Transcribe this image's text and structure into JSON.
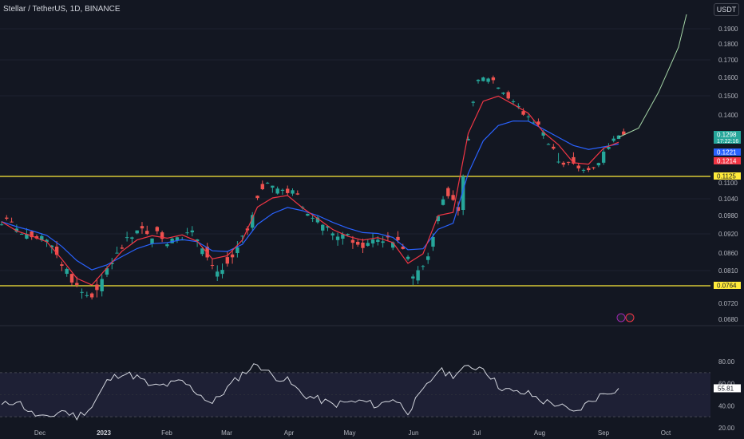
{
  "title": "Stellar / TetherUS, 1D, BINANCE",
  "currency_badge": "USDT",
  "colors": {
    "background": "#131722",
    "up": "#26a69a",
    "down": "#ef5350",
    "ema_fast": "#f23645",
    "ema_slow": "#2962ff",
    "level_line": "#ffeb3b",
    "projection": "#a5d6a7",
    "rsi": "#d1d4dc",
    "rsi_band": "#1e2035"
  },
  "chart_data": [
    {
      "type": "line",
      "title": "Stellar / TetherUS, 1D, BINANCE",
      "x_ticks": [
        "Dec",
        "2023",
        "Feb",
        "Mar",
        "Apr",
        "May",
        "Jun",
        "Jul",
        "Aug",
        "Sep",
        "Oct"
      ],
      "y_ticks": [
        "0.1900",
        "0.1800",
        "0.1700",
        "0.1600",
        "0.1500",
        "0.1400",
        "0.1100",
        "0.1040",
        "0.0980",
        "0.0920",
        "0.0860",
        "0.0810",
        "0.0720",
        "0.0680"
      ],
      "price_labels": [
        {
          "value": "0.1298",
          "sub": "17:22:16",
          "color": "#26a69a"
        },
        {
          "value": "0.1221",
          "color": "#2962ff"
        },
        {
          "value": "0.1214",
          "color": "#f23645"
        },
        {
          "value": "0.1125",
          "color": "#ffeb3b"
        },
        {
          "value": "0.0764",
          "color": "#ffeb3b"
        }
      ],
      "horizontal_levels": [
        0.1125,
        0.0764
      ],
      "series": [
        {
          "x": [
            "Nov 20",
            "Nov 27",
            "Dec 4",
            "Dec 11",
            "Dec 18",
            "Dec 25",
            "Jan 1",
            "Jan 8",
            "Jan 15",
            "Jan 22",
            "Jan 29",
            "Feb 5",
            "Feb 12",
            "Feb 19",
            "Feb 26",
            "Mar 5",
            "Mar 12",
            "Mar 19",
            "Mar 26",
            "Apr 2",
            "Apr 9",
            "Apr 16",
            "Apr 23",
            "Apr 30",
            "May 7",
            "May 14",
            "May 21",
            "May 28",
            "Jun 4",
            "Jun 11",
            "Jun 18",
            "Jun 25",
            "Jul 2",
            "Jul 9",
            "Jul 16",
            "Jul 23",
            "Jul 30",
            "Aug 6",
            "Aug 13",
            "Aug 20",
            "Aug 27",
            "Sep 3"
          ],
          "y": [
            0.096,
            0.0905,
            0.09,
            0.088,
            0.08,
            0.074,
            0.075,
            0.086,
            0.0905,
            0.093,
            0.0925,
            0.09,
            0.0925,
            0.088,
            0.08,
            0.086,
            0.094,
            0.11,
            0.107,
            0.106,
            0.097,
            0.094,
            0.0905,
            0.0895,
            0.089,
            0.0915,
            0.088,
            0.078,
            0.088,
            0.108,
            0.1,
            0.158,
            0.16,
            0.152,
            0.142,
            0.137,
            0.125,
            0.121,
            0.116,
            0.119,
            0.128,
            0.1298
          ]
        }
      ],
      "projection": {
        "x": [
          "Sep 3",
          "Sep 10",
          "Sep 17",
          "Sep 24",
          "Oct 1"
        ],
        "y": [
          0.1298,
          0.134,
          0.152,
          0.178,
          0.2
        ]
      }
    },
    {
      "type": "line",
      "title": "RSI",
      "y_ticks": [
        "80.00",
        "60.00",
        "40.00",
        "20.00"
      ],
      "current_label": "55.81",
      "band": [
        30,
        70
      ],
      "series": [
        {
          "y": [
            40,
            45,
            33,
            28,
            36,
            30,
            39,
            62,
            70,
            66,
            57,
            59,
            62,
            52,
            42,
            56,
            69,
            78,
            67,
            63,
            50,
            46,
            41,
            43,
            44,
            40,
            47,
            35,
            53,
            72,
            68,
            75,
            75,
            58,
            52,
            51,
            44,
            41,
            33,
            43,
            51,
            55.81
          ]
        }
      ]
    }
  ]
}
